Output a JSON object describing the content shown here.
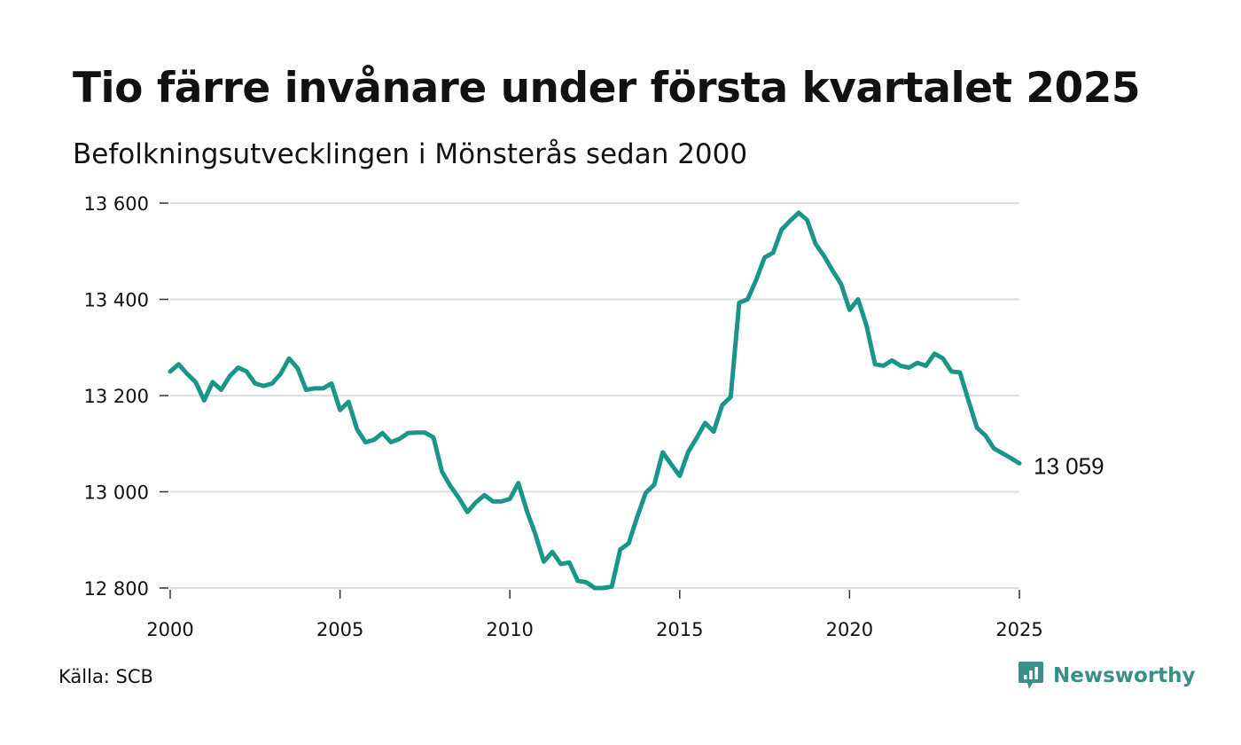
{
  "title": "Tio färre invånare under första kvartalet 2025",
  "subtitle": "Befolkningsutvecklingen i Mönsterås sedan 2000",
  "source": "Källa: SCB",
  "logo": {
    "text": "Newsworthy",
    "icon": "newsworthy-logo-icon"
  },
  "colors": {
    "line": "#1a9688",
    "grid": "#dedee4",
    "text": "#111111",
    "logo": "#3a8f86"
  },
  "chart_data": {
    "type": "line",
    "title": "Tio färre invånare under första kvartalet 2025",
    "subtitle": "Befolkningsutvecklingen i Mönsterås sedan 2000",
    "xlim": [
      2000,
      2025
    ],
    "ylim": [
      12800,
      13600
    ],
    "x_ticks": [
      2000,
      2005,
      2010,
      2015,
      2020,
      2025
    ],
    "x_tick_labels": [
      "2000",
      "2005",
      "2010",
      "2015",
      "2020",
      "2025"
    ],
    "y_ticks": [
      12800,
      13000,
      13200,
      13400,
      13600
    ],
    "y_tick_labels": [
      "12 800",
      "13 000",
      "13 200",
      "13 400",
      "13 600"
    ],
    "grid": "horizontal",
    "legend": "none",
    "end_label": "13 059",
    "series": [
      {
        "x": [
          2000.0,
          2000.25,
          2000.5,
          2000.75,
          2001.0,
          2001.25,
          2001.5,
          2001.75,
          2002.0,
          2002.25,
          2002.5,
          2002.75,
          2003.0,
          2003.25,
          2003.5,
          2003.75,
          2004.0,
          2004.25,
          2004.5,
          2004.75,
          2005.0,
          2005.25,
          2005.5,
          2005.75,
          2006.0,
          2006.25,
          2006.5,
          2006.75,
          2007.0,
          2007.25,
          2007.5,
          2007.75,
          2008.0,
          2008.25,
          2008.5,
          2008.75,
          2009.0,
          2009.25,
          2009.5,
          2009.75,
          2010.0,
          2010.25,
          2010.5,
          2010.75,
          2011.0,
          2011.25,
          2011.5,
          2011.75,
          2012.0,
          2012.25,
          2012.5,
          2012.75,
          2013.0,
          2013.25,
          2013.5,
          2013.75,
          2014.0,
          2014.25,
          2014.5,
          2014.75,
          2015.0,
          2015.25,
          2015.5,
          2015.75,
          2016.0,
          2016.25,
          2016.5,
          2016.75,
          2017.0,
          2017.25,
          2017.5,
          2017.75,
          2018.0,
          2018.25,
          2018.5,
          2018.75,
          2019.0,
          2019.25,
          2019.5,
          2019.75,
          2020.0,
          2020.25,
          2020.5,
          2020.75,
          2021.0,
          2021.25,
          2021.5,
          2021.75,
          2022.0,
          2022.25,
          2022.5,
          2022.75,
          2023.0,
          2023.25,
          2023.5,
          2023.75,
          2024.0,
          2024.25,
          2024.5,
          2024.75,
          2025.0
        ],
        "y": [
          13250,
          13265,
          13245,
          13228,
          13190,
          13228,
          13212,
          13240,
          13258,
          13250,
          13225,
          13220,
          13225,
          13245,
          13277,
          13257,
          13212,
          13215,
          13215,
          13225,
          13170,
          13187,
          13130,
          13103,
          13108,
          13122,
          13103,
          13110,
          13122,
          13123,
          13123,
          13113,
          13042,
          13012,
          12987,
          12958,
          12978,
          12993,
          12980,
          12980,
          12985,
          13018,
          12960,
          12912,
          12855,
          12875,
          12850,
          12853,
          12815,
          12812,
          12800,
          12800,
          12803,
          12880,
          12893,
          12948,
          12998,
          13015,
          13082,
          13057,
          13033,
          13083,
          13112,
          13143,
          13125,
          13180,
          13197,
          13393,
          13400,
          13440,
          13487,
          13497,
          13545,
          13563,
          13580,
          13565,
          13515,
          13490,
          13460,
          13432,
          13378,
          13400,
          13345,
          13265,
          13262,
          13273,
          13262,
          13258,
          13268,
          13262,
          13287,
          13277,
          13250,
          13248,
          13190,
          13133,
          13117,
          13090,
          13080,
          13070,
          13059
        ]
      }
    ]
  }
}
